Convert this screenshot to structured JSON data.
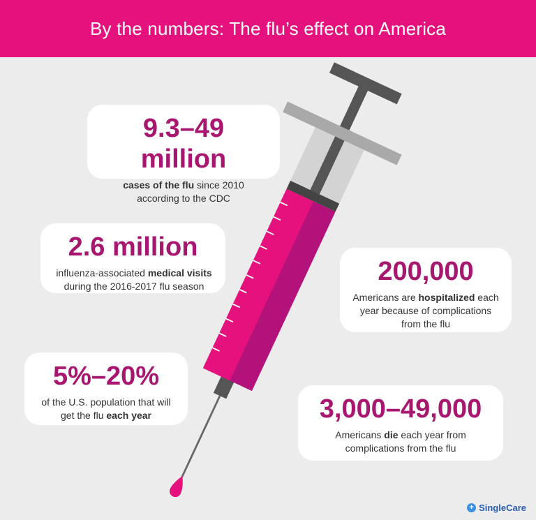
{
  "header": {
    "title": "By the numbers: The flu’s effect on America"
  },
  "cards": [
    {
      "headline": "9.3–49 million",
      "description": [
        {
          "text": "cases of the flu",
          "bold": true
        },
        {
          "text": " since 2010 according to the CDC"
        }
      ]
    },
    {
      "headline": "2.6 million",
      "description": [
        {
          "text": "influenza-associated "
        },
        {
          "text": "medical visits",
          "bold": true
        },
        {
          "text": " during the 2016-2017 flu season"
        }
      ]
    },
    {
      "headline": "200,000",
      "description": [
        {
          "text": "Americans are "
        },
        {
          "text": "hospitalized",
          "bold": true
        },
        {
          "text": " each year because of complications from the flu"
        }
      ]
    },
    {
      "headline": "5%–20%",
      "description": [
        {
          "text": "of the U.S. population that will get the flu "
        },
        {
          "text": "each year",
          "bold": true
        }
      ]
    },
    {
      "headline": "3,000–49,000",
      "description": [
        {
          "text": "Americans "
        },
        {
          "text": "die",
          "bold": true
        },
        {
          "text": " each year from complications from the flu"
        }
      ]
    }
  ],
  "brand": "SingleCare"
}
